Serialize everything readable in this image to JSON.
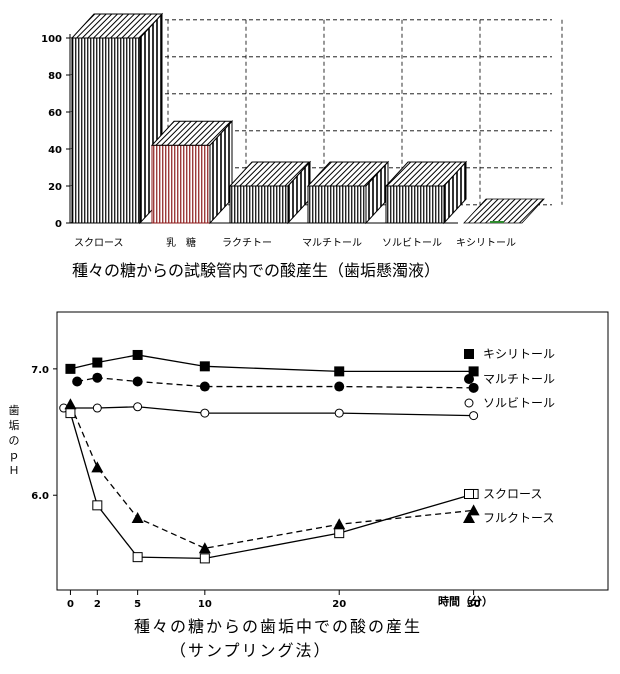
{
  "chart_data": [
    {
      "type": "bar",
      "title": "種々の糖からの試験管内での酸産生（歯垢懸濁液）",
      "categories": [
        "スクロース",
        "乳　糖",
        "ラクチトール",
        "マルチトール",
        "ソルビトール",
        "キシリトール"
      ],
      "category_labels": [
        "スクロース",
        "乳　糖",
        "ラクチトー",
        "マルチトール",
        "ソルビトール",
        "キシリトール"
      ],
      "values": [
        100,
        42,
        20,
        20,
        20,
        0
      ],
      "ylim": [
        0,
        100
      ],
      "yticks": [
        "0",
        "20",
        "40",
        "60",
        "80",
        "100"
      ],
      "grid": true,
      "colors": {
        "bar_default": "#ffffff",
        "bar_lactose": "#8b1a1a",
        "bar_xylitol": "#2e8b2e"
      }
    },
    {
      "type": "line",
      "title": "種々の糖からの歯垢中での酸の産生",
      "subtitle": "（サンプリング法）",
      "ylabel": "歯垢のｐＨ",
      "xlabel": "時間（分）",
      "xticks": [
        "0",
        "2",
        "5",
        "10",
        "20",
        "30"
      ],
      "yticks": [
        "6.0",
        "7.0"
      ],
      "xlim": [
        -1,
        40
      ],
      "ylim": [
        5.25,
        7.45
      ],
      "series": [
        {
          "name": "キシリトール",
          "marker": "filled-square",
          "dash": "solid",
          "x": [
            0,
            2,
            5,
            10,
            20,
            30
          ],
          "y": [
            7.0,
            7.05,
            7.11,
            7.02,
            6.98,
            6.98
          ]
        },
        {
          "name": "マルチトール",
          "marker": "filled-circle",
          "dash": "dashed",
          "x": [
            0.5,
            2,
            5,
            10,
            20,
            30
          ],
          "y": [
            6.9,
            6.93,
            6.9,
            6.86,
            6.86,
            6.85
          ]
        },
        {
          "name": "ソルビトール",
          "marker": "open-circle",
          "dash": "solid",
          "x": [
            -0.5,
            2,
            5,
            10,
            20,
            30
          ],
          "y": [
            6.69,
            6.69,
            6.7,
            6.65,
            6.65,
            6.63
          ]
        },
        {
          "name": "スクロース",
          "marker": "open-square",
          "dash": "solid",
          "x": [
            0,
            2,
            5,
            10,
            20,
            30
          ],
          "y": [
            6.65,
            5.92,
            5.51,
            5.5,
            5.7,
            6.01
          ]
        },
        {
          "name": "フルクトース",
          "marker": "filled-triangle",
          "dash": "dashed",
          "x": [
            0,
            2,
            5,
            10,
            20,
            30
          ],
          "y": [
            6.72,
            6.22,
            5.82,
            5.58,
            5.77,
            5.88
          ]
        }
      ],
      "legend_position": "right"
    }
  ]
}
